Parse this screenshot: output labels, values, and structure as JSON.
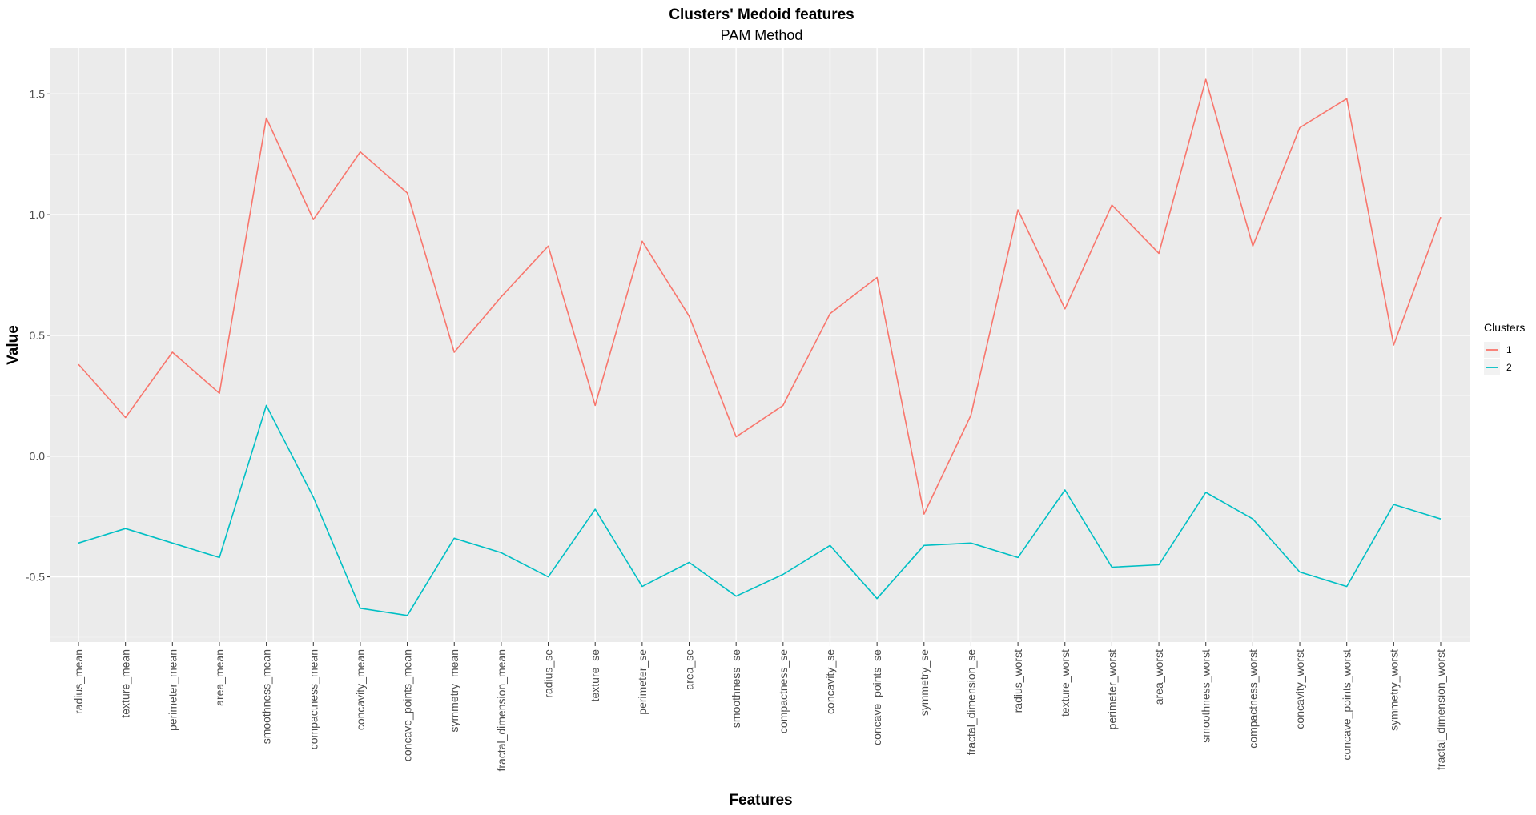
{
  "chart_data": {
    "type": "line",
    "title": "Clusters' Medoid features",
    "subtitle": "PAM Method",
    "xlabel": "Features",
    "ylabel": "Value",
    "ylim": [
      -0.77,
      1.69
    ],
    "yticks": [
      -0.5,
      0.0,
      0.5,
      1.0,
      1.5
    ],
    "ytick_labels": [
      "-0.5",
      "0.0",
      "0.5",
      "1.0",
      "1.5"
    ],
    "grid": true,
    "legend": {
      "title": "Clusters",
      "position": "right"
    },
    "categories": [
      "radius_mean",
      "texture_mean",
      "perimeter_mean",
      "area_mean",
      "smoothness_mean",
      "compactness_mean",
      "concavity_mean",
      "concave_points_mean",
      "symmetry_mean",
      "fractal_dimension_mean",
      "radius_se",
      "texture_se",
      "perimeter_se",
      "area_se",
      "smoothness_se",
      "compactness_se",
      "concavity_se",
      "concave_points_se",
      "symmetry_se",
      "fractal_dimension_se",
      "radius_worst",
      "texture_worst",
      "perimeter_worst",
      "area_worst",
      "smoothness_worst",
      "compactness_worst",
      "concavity_worst",
      "concave_points_worst",
      "symmetry_worst",
      "fractal_dimension_worst"
    ],
    "series": [
      {
        "name": "1",
        "color": "#F8766D",
        "values": [
          0.38,
          0.16,
          0.43,
          0.26,
          1.4,
          0.98,
          1.26,
          1.09,
          0.43,
          0.66,
          0.87,
          0.21,
          0.89,
          0.58,
          0.08,
          0.21,
          0.59,
          0.74,
          -0.24,
          0.17,
          1.02,
          0.61,
          1.04,
          0.84,
          1.56,
          0.87,
          1.36,
          1.48,
          0.46,
          0.99
        ]
      },
      {
        "name": "2",
        "color": "#00BFC4",
        "values": [
          -0.36,
          -0.3,
          -0.36,
          -0.42,
          0.21,
          -0.17,
          -0.63,
          -0.66,
          -0.34,
          -0.4,
          -0.5,
          -0.22,
          -0.54,
          -0.44,
          -0.58,
          -0.49,
          -0.37,
          -0.59,
          -0.37,
          -0.36,
          -0.42,
          -0.14,
          -0.46,
          -0.45,
          -0.15,
          -0.26,
          -0.48,
          -0.54,
          -0.2,
          -0.26
        ]
      }
    ]
  }
}
